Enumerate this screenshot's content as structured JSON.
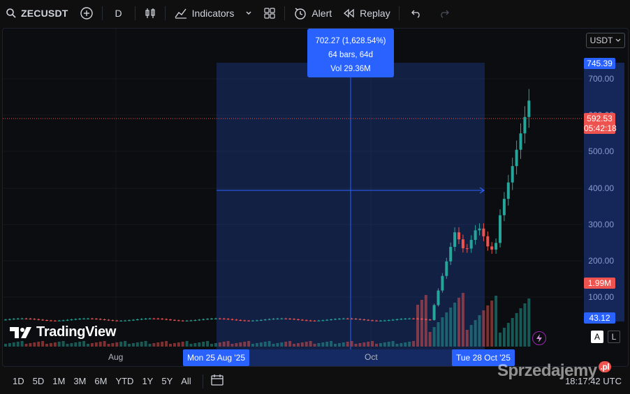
{
  "toolbar": {
    "symbol": "ZECUSDT",
    "interval": "D",
    "indicators_label": "Indicators",
    "alert_label": "Alert",
    "replay_label": "Replay"
  },
  "chart": {
    "currency": "USDT",
    "price_ticks": [
      "700.00",
      "600.00",
      "500.00",
      "400.00",
      "300.00",
      "200.00",
      "100.00"
    ],
    "time_ticks": [
      "Aug",
      "Oct"
    ],
    "measure_tooltip": {
      "line1": "702.27 (1,628.54%)",
      "line2": "64 bars, 64d",
      "line3": "Vol 29.36M"
    },
    "start_date_label": "Mon 25 Aug '25",
    "end_date_label": "Tue 28 Oct '25",
    "tags": {
      "high": "745.39",
      "last_price": "592.53",
      "countdown": "05:42:18",
      "volume": "1.99M",
      "low": "43.12"
    },
    "brand": "TradingView",
    "scale_a": "A",
    "scale_l": "L",
    "watermark": "Sprzedajemy",
    "watermark_suffix": ".pl",
    "colors": {
      "up": "#26a69a",
      "down": "#ef5350",
      "accent": "#2962ff",
      "measure_fill": "#2962ff33"
    }
  },
  "bottombar": {
    "timeframes": [
      "1D",
      "5D",
      "1M",
      "3M",
      "6M",
      "YTD",
      "1Y",
      "5Y",
      "All"
    ],
    "clock": "18:17:42 UTC"
  }
}
